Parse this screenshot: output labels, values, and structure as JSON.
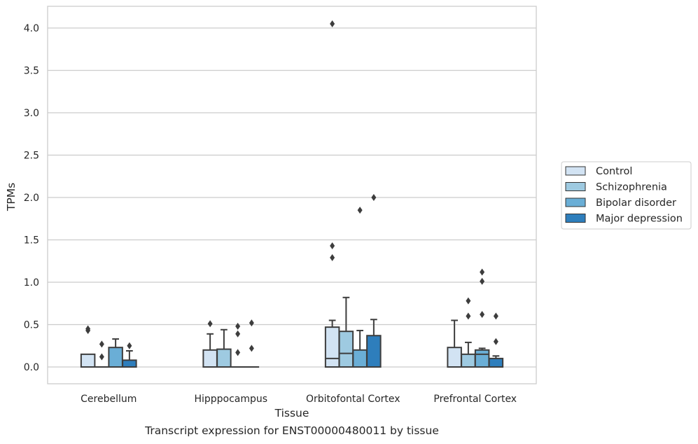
{
  "chart_data": {
    "type": "boxplot",
    "caption": "Transcript expression for ENST00000480011 by tissue",
    "xlabel": "Tissue",
    "ylabel": "TPMs",
    "ylim": [
      -0.2,
      4.25
    ],
    "yticks": [
      "0.0",
      "0.5",
      "1.0",
      "1.5",
      "2.0",
      "2.5",
      "3.0",
      "3.5",
      "4.0"
    ],
    "grid": true,
    "legend_position": "right",
    "categories": [
      "Cerebellum",
      "Hipppocampus",
      "Orbitofontal Cortex",
      "Prefrontal Cortex"
    ],
    "series": [
      {
        "name": "Control",
        "color": "#d2e3f3",
        "boxes": [
          {
            "q1": 0.0,
            "median": 0.0,
            "q3": 0.15,
            "whisker_low": 0.0,
            "whisker_high": 0.15,
            "outliers": [
              0.43,
              0.45
            ]
          },
          {
            "q1": 0.0,
            "median": 0.0,
            "q3": 0.2,
            "whisker_low": 0.0,
            "whisker_high": 0.39,
            "outliers": [
              0.51
            ]
          },
          {
            "q1": 0.0,
            "median": 0.1,
            "q3": 0.47,
            "whisker_low": 0.0,
            "whisker_high": 0.55,
            "outliers": [
              1.29,
              1.43,
              4.05
            ]
          },
          {
            "q1": 0.0,
            "median": 0.0,
            "q3": 0.23,
            "whisker_low": 0.0,
            "whisker_high": 0.55,
            "outliers": []
          }
        ]
      },
      {
        "name": "Schizophrenia",
        "color": "#9ecae1",
        "boxes": [
          {
            "q1": 0.0,
            "median": 0.0,
            "q3": 0.0,
            "whisker_low": 0.0,
            "whisker_high": 0.0,
            "outliers": [
              0.12,
              0.27
            ]
          },
          {
            "q1": 0.0,
            "median": 0.0,
            "q3": 0.21,
            "whisker_low": 0.0,
            "whisker_high": 0.44,
            "outliers": []
          },
          {
            "q1": 0.0,
            "median": 0.16,
            "q3": 0.42,
            "whisker_low": 0.0,
            "whisker_high": 0.82,
            "outliers": []
          },
          {
            "q1": 0.0,
            "median": 0.0,
            "q3": 0.15,
            "whisker_low": 0.0,
            "whisker_high": 0.29,
            "outliers": [
              0.6,
              0.78
            ]
          }
        ]
      },
      {
        "name": "Bipolar disorder",
        "color": "#6aaed6",
        "boxes": [
          {
            "q1": 0.0,
            "median": 0.0,
            "q3": 0.23,
            "whisker_low": 0.0,
            "whisker_high": 0.33,
            "outliers": []
          },
          {
            "q1": 0.0,
            "median": 0.0,
            "q3": 0.0,
            "whisker_low": 0.0,
            "whisker_high": 0.0,
            "outliers": [
              0.17,
              0.39,
              0.48
            ]
          },
          {
            "q1": 0.0,
            "median": 0.0,
            "q3": 0.2,
            "whisker_low": 0.0,
            "whisker_high": 0.43,
            "outliers": [
              1.85
            ]
          },
          {
            "q1": 0.0,
            "median": 0.15,
            "q3": 0.2,
            "whisker_low": 0.0,
            "whisker_high": 0.22,
            "outliers": [
              0.62,
              1.01,
              1.12
            ]
          }
        ]
      },
      {
        "name": "Major depression",
        "color": "#2e7ebc",
        "boxes": [
          {
            "q1": 0.0,
            "median": 0.0,
            "q3": 0.08,
            "whisker_low": 0.0,
            "whisker_high": 0.19,
            "outliers": [
              0.25
            ]
          },
          {
            "q1": 0.0,
            "median": 0.0,
            "q3": 0.0,
            "whisker_low": 0.0,
            "whisker_high": 0.0,
            "outliers": [
              0.22,
              0.52
            ]
          },
          {
            "q1": 0.0,
            "median": 0.0,
            "q3": 0.37,
            "whisker_low": 0.0,
            "whisker_high": 0.56,
            "outliers": [
              2.0
            ]
          },
          {
            "q1": 0.0,
            "median": 0.0,
            "q3": 0.1,
            "whisker_low": 0.0,
            "whisker_high": 0.13,
            "outliers": [
              0.3,
              0.6
            ]
          }
        ]
      }
    ]
  }
}
